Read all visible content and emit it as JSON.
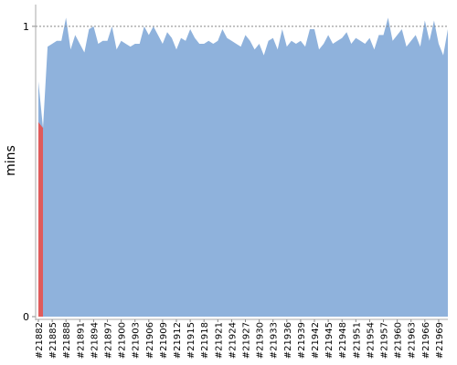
{
  "chart_data": {
    "type": "area",
    "y_label": "mins",
    "categories": [
      "#21882",
      null,
      null,
      "#21885",
      null,
      null,
      "#21888",
      null,
      null,
      "#21891",
      null,
      null,
      "#21894",
      null,
      null,
      "#21897",
      null,
      null,
      "#21900",
      null,
      null,
      "#21903",
      null,
      null,
      "#21906",
      null,
      null,
      "#21909",
      null,
      null,
      "#21912",
      null,
      null,
      "#21915",
      null,
      null,
      "#21918",
      null,
      null,
      "#21921",
      null,
      null,
      "#21924",
      null,
      null,
      "#21927",
      null,
      null,
      "#21930",
      null,
      null,
      "#21933",
      null,
      null,
      "#21936",
      null,
      null,
      "#21939",
      null,
      null,
      "#21942",
      null,
      null,
      "#21945",
      null,
      null,
      "#21948",
      null,
      null,
      "#21951",
      null,
      null,
      "#21954",
      null,
      null,
      "#21957",
      null,
      null,
      "#21960",
      null,
      null,
      "#21963",
      null,
      null,
      "#21966",
      null,
      null,
      "#21969",
      null,
      null
    ],
    "series": [
      {
        "color": "#8fb2dc",
        "values": [
          0.81,
          0.65,
          0.93,
          0.94,
          0.95,
          0.95,
          1.03,
          0.92,
          0.97,
          0.94,
          0.91,
          0.99,
          1.0,
          0.94,
          0.95,
          0.95,
          1.0,
          0.92,
          0.95,
          0.94,
          0.93,
          0.94,
          0.94,
          1.0,
          0.97,
          1.0,
          0.97,
          0.94,
          0.98,
          0.96,
          0.92,
          0.96,
          0.95,
          0.99,
          0.96,
          0.94,
          0.94,
          0.95,
          0.94,
          0.95,
          0.99,
          0.96,
          0.95,
          0.94,
          0.93,
          0.97,
          0.95,
          0.92,
          0.94,
          0.9,
          0.95,
          0.96,
          0.92,
          0.99,
          0.93,
          0.95,
          0.94,
          0.95,
          0.93,
          0.99,
          0.99,
          0.92,
          0.94,
          0.97,
          0.94,
          0.95,
          0.96,
          0.98,
          0.94,
          0.96,
          0.95,
          0.94,
          0.96,
          0.92,
          0.97,
          0.97,
          1.03,
          0.95,
          0.97,
          0.99,
          0.93,
          0.95,
          0.97,
          0.93,
          1.02,
          0.95,
          1.02,
          0.94,
          0.9,
          0.99
        ]
      },
      {
        "color": "#e05b5b",
        "values": [
          0.67,
          0.65,
          null,
          null,
          null,
          null,
          null,
          null,
          null,
          null,
          null,
          null,
          null,
          null,
          null,
          null,
          null,
          null,
          null,
          null,
          null,
          null,
          null,
          null,
          null,
          null,
          null,
          null,
          null,
          null,
          null,
          null,
          null,
          null,
          null,
          null,
          null,
          null,
          null,
          null,
          null,
          null,
          null,
          null,
          null,
          null,
          null,
          null,
          null,
          null,
          null,
          null,
          null,
          null,
          null,
          null,
          null,
          null,
          null,
          null,
          null,
          null,
          null,
          null,
          null,
          null,
          null,
          null,
          null,
          null,
          null,
          null,
          null,
          null,
          null,
          null,
          null,
          null,
          null,
          null,
          null,
          null,
          null,
          null,
          null,
          null,
          null,
          null,
          null,
          null
        ]
      }
    ],
    "ylim": [
      0,
      1.075
    ],
    "yticks": [
      0,
      1
    ],
    "grid": true
  }
}
